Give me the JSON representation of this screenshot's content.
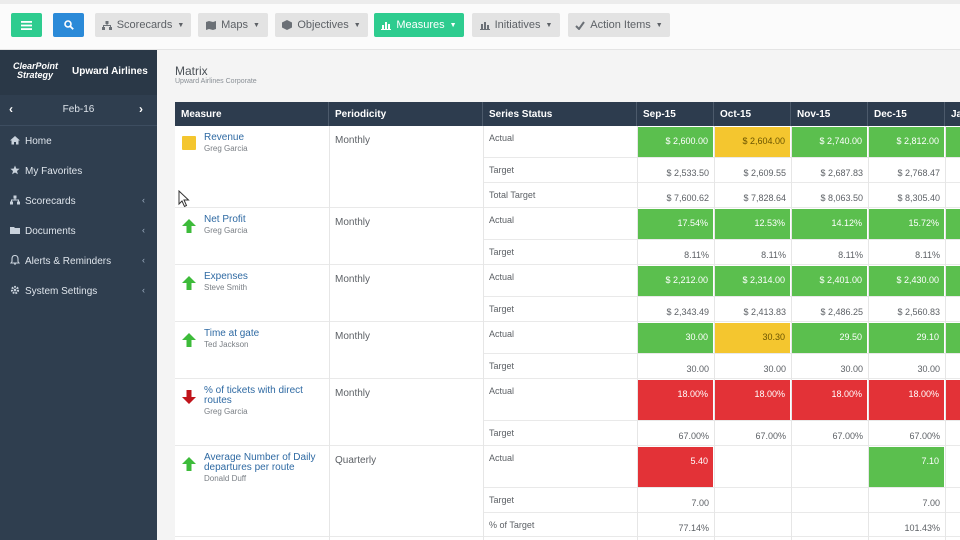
{
  "toolbar": {
    "scorecards": "Scorecards",
    "maps": "Maps",
    "objectives": "Objectives",
    "measures": "Measures",
    "initiatives": "Initiatives",
    "action_items": "Action Items"
  },
  "brand": {
    "logo_line1": "ClearPoint",
    "logo_line2": "Strategy",
    "org": "Upward Airlines"
  },
  "period": "Feb-16",
  "nav": [
    "Home",
    "My Favorites",
    "Scorecards",
    "Documents",
    "Alerts & Reminders",
    "System Settings"
  ],
  "page": {
    "title": "Matrix",
    "subtitle": "Upward Airlines Corporate"
  },
  "columns": [
    "Measure",
    "Periodicity",
    "Series Status",
    "Sep-15",
    "Oct-15",
    "Nov-15",
    "Dec-15",
    "Ja"
  ],
  "measures": [
    {
      "name": "Revenue",
      "owner": "Greg Garcia",
      "periodicity": "Monthly",
      "indicator": "yellow-square",
      "series": [
        {
          "label": "Actual",
          "values": [
            "$ 2,600.00",
            "$ 2,604.00",
            "$ 2,740.00",
            "$ 2,812.00"
          ],
          "fills": [
            "green",
            "yellow",
            "green",
            "green"
          ],
          "next": "green"
        },
        {
          "label": "Target",
          "values": [
            "$ 2,533.50",
            "$ 2,609.55",
            "$ 2,687.83",
            "$ 2,768.47"
          ],
          "fills": [
            "",
            "",
            "",
            ""
          ],
          "next": ""
        },
        {
          "label": "Total Target",
          "values": [
            "$ 7,600.62",
            "$ 7,828.64",
            "$ 8,063.50",
            "$ 8,305.40"
          ],
          "fills": [
            "",
            "",
            "",
            ""
          ],
          "next": ""
        }
      ]
    },
    {
      "name": "Net Profit",
      "owner": "Greg Garcia",
      "periodicity": "Monthly",
      "indicator": "up-arrow",
      "series": [
        {
          "label": "Actual",
          "values": [
            "17.54%",
            "12.53%",
            "14.12%",
            "15.72%"
          ],
          "fills": [
            "green",
            "green",
            "green",
            "green"
          ],
          "next": "green"
        },
        {
          "label": "Target",
          "values": [
            "8.11%",
            "8.11%",
            "8.11%",
            "8.11%"
          ],
          "fills": [
            "",
            "",
            "",
            ""
          ],
          "next": ""
        }
      ]
    },
    {
      "name": "Expenses",
      "owner": "Steve Smith",
      "periodicity": "Monthly",
      "indicator": "up-arrow",
      "series": [
        {
          "label": "Actual",
          "values": [
            "$ 2,212.00",
            "$ 2,314.00",
            "$ 2,401.00",
            "$ 2,430.00"
          ],
          "fills": [
            "green",
            "green",
            "green",
            "green"
          ],
          "next": "green"
        },
        {
          "label": "Target",
          "values": [
            "$ 2,343.49",
            "$ 2,413.83",
            "$ 2,486.25",
            "$ 2,560.83"
          ],
          "fills": [
            "",
            "",
            "",
            ""
          ],
          "next": ""
        }
      ]
    },
    {
      "name": "Time at gate",
      "owner": "Ted Jackson",
      "periodicity": "Monthly",
      "indicator": "up-arrow",
      "series": [
        {
          "label": "Actual",
          "values": [
            "30.00",
            "30.30",
            "29.50",
            "29.10"
          ],
          "fills": [
            "green",
            "yellow",
            "green",
            "green"
          ],
          "next": "green"
        },
        {
          "label": "Target",
          "values": [
            "30.00",
            "30.00",
            "30.00",
            "30.00"
          ],
          "fills": [
            "",
            "",
            "",
            ""
          ],
          "next": ""
        }
      ]
    },
    {
      "name": "% of tickets with direct routes",
      "owner": "Greg Garcia",
      "periodicity": "Monthly",
      "indicator": "down-arrow",
      "series": [
        {
          "label": "Actual",
          "values": [
            "18.00%",
            "18.00%",
            "18.00%",
            "18.00%"
          ],
          "fills": [
            "red",
            "red",
            "red",
            "red"
          ],
          "next": "red"
        },
        {
          "label": "Target",
          "values": [
            "67.00%",
            "67.00%",
            "67.00%",
            "67.00%"
          ],
          "fills": [
            "",
            "",
            "",
            ""
          ],
          "next": ""
        }
      ]
    },
    {
      "name": "Average Number of Daily departures per route",
      "owner": "Donald Duff",
      "periodicity": "Quarterly",
      "indicator": "up-arrow",
      "series": [
        {
          "label": "Actual",
          "values": [
            "5.40",
            "",
            "",
            "7.10"
          ],
          "fills": [
            "red",
            "",
            "",
            "green"
          ],
          "next": ""
        },
        {
          "label": "Target",
          "values": [
            "7.00",
            "",
            "",
            "7.00"
          ],
          "fills": [
            "",
            "",
            "",
            ""
          ],
          "next": ""
        },
        {
          "label": "% of Target",
          "values": [
            "77.14%",
            "",
            "",
            "101.43%"
          ],
          "fills": [
            "",
            "",
            "",
            ""
          ],
          "next": ""
        }
      ]
    }
  ],
  "colors": {
    "green": "#5bbf4e",
    "yellow": "#f4c62f",
    "red": "#e33237",
    "header": "#2d3c4e",
    "sidebar": "#2f3e4f"
  }
}
